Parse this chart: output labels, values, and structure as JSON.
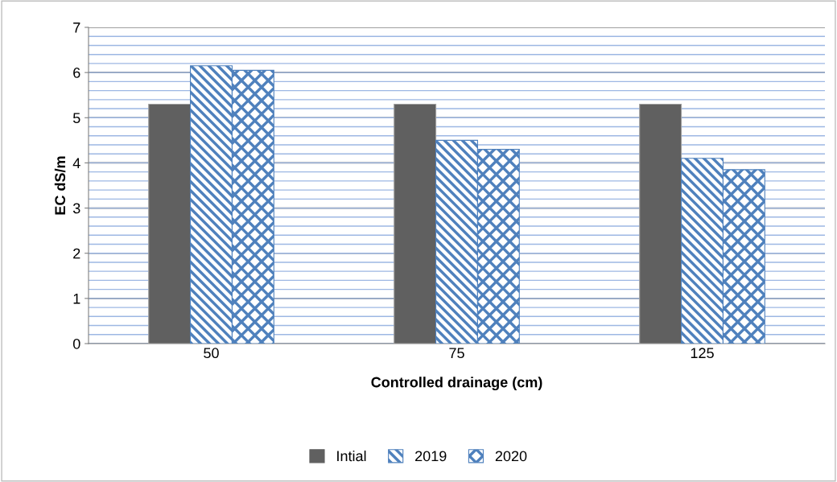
{
  "chart_data": {
    "type": "bar",
    "xlabel": "Controlled drainage (cm)",
    "ylabel": "EC dS/m",
    "categories": [
      "50",
      "75",
      "125"
    ],
    "series": [
      {
        "name": "Intial",
        "color": "#606060",
        "values": [
          5.3,
          5.3,
          5.3
        ]
      },
      {
        "name": "2019",
        "color": "#4f81bd",
        "values": [
          6.15,
          4.5,
          4.1
        ]
      },
      {
        "name": "2020",
        "color": "#4f81bd",
        "values": [
          6.05,
          4.3,
          3.85
        ]
      }
    ],
    "ylim": [
      0,
      7
    ],
    "yticks": [
      0,
      1,
      2,
      3,
      4,
      5,
      6,
      7
    ],
    "grid": "y",
    "legend": "bottom"
  }
}
